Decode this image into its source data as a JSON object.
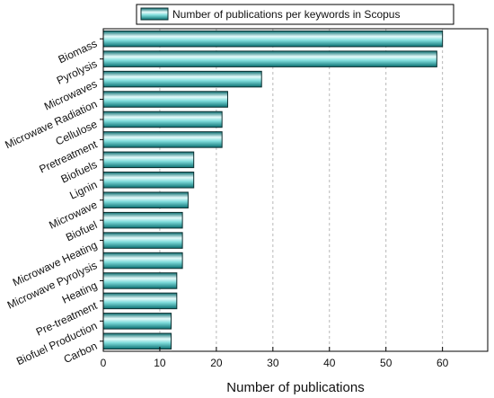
{
  "chart_data": {
    "type": "bar",
    "orientation": "horizontal",
    "categories": [
      "Biomass",
      "Pyrolysis",
      "Microwaves",
      "Microwave Radiation",
      "Cellulose",
      "Pretreatment",
      "Biofuels",
      "Lignin",
      "Microwave",
      "Biofuel",
      "Microwave Heating",
      "Microwave Pyrolysis",
      "Heating",
      "Pre-treatment",
      "Biofuel Production",
      "Carbon"
    ],
    "series": [
      {
        "name": "Number of publications per keywords in Scopus",
        "values": [
          60,
          59,
          28,
          22,
          21,
          21,
          16,
          16,
          15,
          14,
          14,
          14,
          13,
          13,
          12,
          12
        ]
      }
    ],
    "title": "",
    "xlabel": "Number of publications",
    "ylabel": "",
    "xlim": [
      0,
      68
    ],
    "xticks": [
      "0",
      "10",
      "20",
      "30",
      "40",
      "50",
      "60"
    ],
    "grid": "vertical dashed",
    "legend_position": "top-right",
    "colors": {
      "bar_light": "#e6fbfb",
      "bar_mid": "#5fd0cf",
      "bar_dark": "#0a6e70",
      "border": "#0d2f30",
      "grid": "#b8b8b8"
    }
  }
}
